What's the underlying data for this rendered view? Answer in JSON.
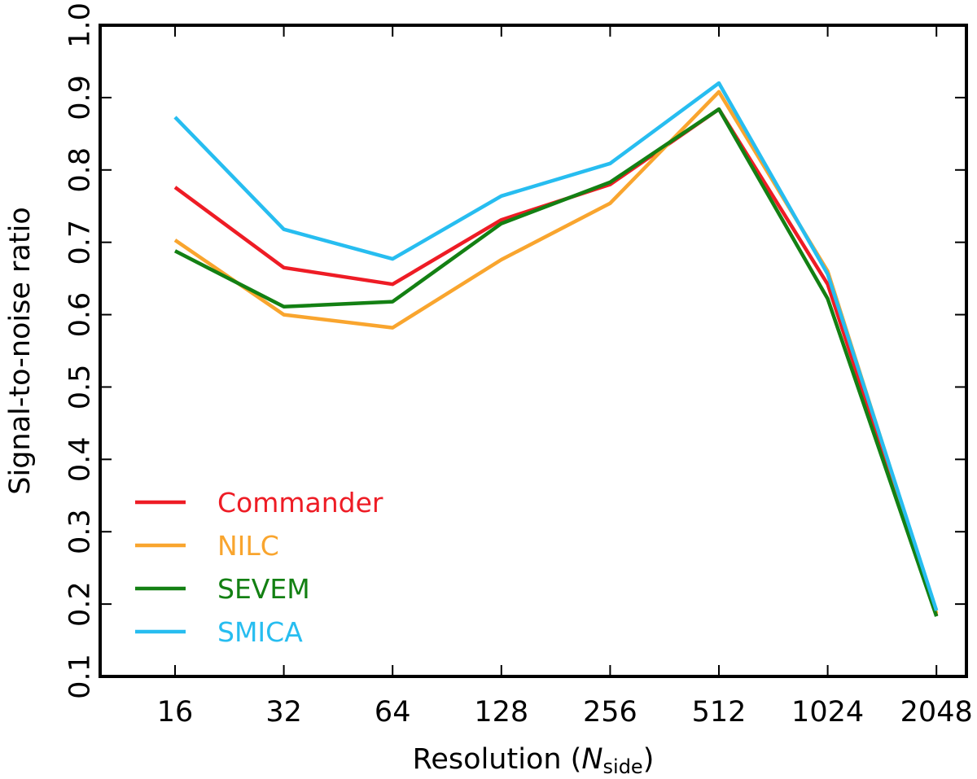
{
  "chart_data": {
    "type": "line",
    "categories": [
      "16",
      "32",
      "64",
      "128",
      "256",
      "512",
      "1024",
      "2048"
    ],
    "xlabel": "Resolution (",
    "xlabel_var": "N",
    "xlabel_sub": "side",
    "xlabel_close": ")",
    "ylabel": "Signal-to-noise ratio",
    "ylim": [
      0.1,
      1.0
    ],
    "yticks": [
      "0.1",
      "0.2",
      "0.3",
      "0.4",
      "0.5",
      "0.6",
      "0.7",
      "0.8",
      "0.9",
      "1.0"
    ],
    "grid": false,
    "legend_position": "lower-left",
    "series": [
      {
        "name": "Commander",
        "color": "#ee1c25",
        "values": [
          0.776,
          0.665,
          0.642,
          0.731,
          0.78,
          0.884,
          0.642,
          0.184
        ]
      },
      {
        "name": "NILC",
        "color": "#f9a52e",
        "values": [
          0.703,
          0.6,
          0.582,
          0.676,
          0.754,
          0.908,
          0.66,
          0.187
        ]
      },
      {
        "name": "SEVEM",
        "color": "#138013",
        "values": [
          0.688,
          0.611,
          0.618,
          0.726,
          0.783,
          0.884,
          0.622,
          0.183
        ]
      },
      {
        "name": "SMICA",
        "color": "#27bdf0",
        "values": [
          0.873,
          0.718,
          0.677,
          0.764,
          0.809,
          0.92,
          0.656,
          0.191
        ]
      }
    ]
  }
}
